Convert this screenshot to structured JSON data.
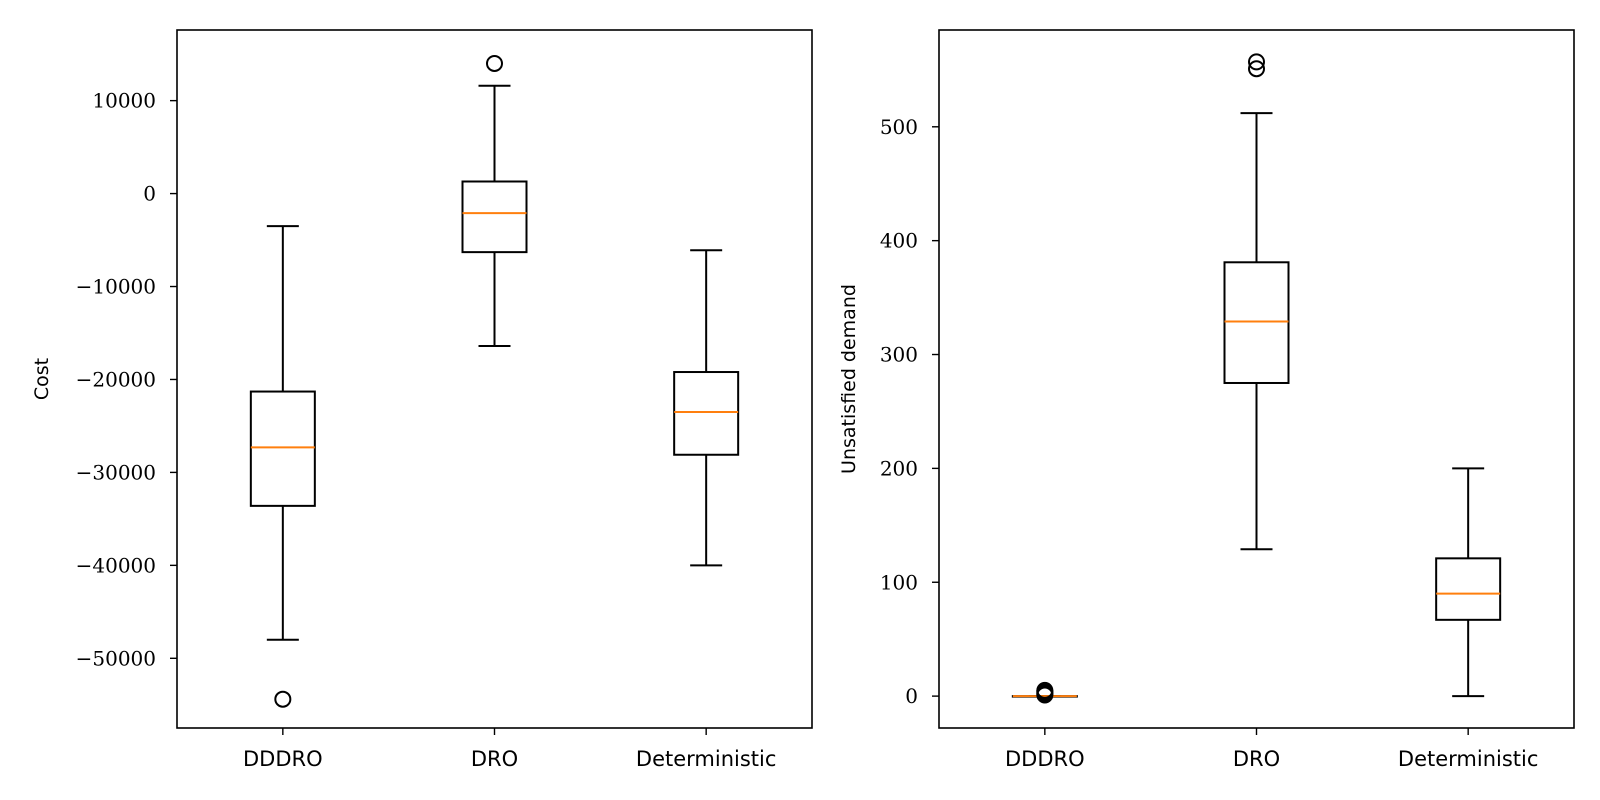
{
  "chart_data": [
    {
      "type": "box",
      "ylabel": "Cost",
      "categories": [
        "DDDRO",
        "DRO",
        "Deterministic"
      ],
      "ylim": [
        -57500,
        17600
      ],
      "yticks": [
        10000,
        0,
        -10000,
        -20000,
        -30000,
        -40000,
        -50000
      ],
      "ytick_labels": [
        "10000",
        "0",
        "−10000",
        "−20000",
        "−30000",
        "−40000",
        "−50000"
      ],
      "boxes": [
        {
          "name": "DDDRO",
          "whisker_low": -48000,
          "q1": -33600,
          "median": -27300,
          "q3": -21300,
          "whisker_high": -3500,
          "outliers": [
            -54400
          ]
        },
        {
          "name": "DRO",
          "whisker_low": -16400,
          "q1": -6300,
          "median": -2100,
          "q3": 1300,
          "whisker_high": 11600,
          "outliers": [
            14000
          ]
        },
        {
          "name": "Deterministic",
          "whisker_low": -40000,
          "q1": -28100,
          "median": -23500,
          "q3": -19200,
          "whisker_high": -6100,
          "outliers": []
        }
      ],
      "colors": {
        "box": "#000000",
        "median": "#ff7f0e"
      }
    },
    {
      "type": "box",
      "ylabel": "Unsatisfied demand",
      "categories": [
        "DDDRO",
        "DRO",
        "Deterministic"
      ],
      "ylim": [
        -28,
        585
      ],
      "yticks": [
        500,
        400,
        300,
        200,
        100,
        0
      ],
      "ytick_labels": [
        "500",
        "400",
        "300",
        "200",
        "100",
        "0"
      ],
      "boxes": [
        {
          "name": "DDDRO",
          "whisker_low": 0,
          "q1": 0,
          "median": 0,
          "q3": 0,
          "whisker_high": 0,
          "outliers": [
            1,
            2,
            3,
            4,
            5
          ]
        },
        {
          "name": "DRO",
          "whisker_low": 129,
          "q1": 275,
          "median": 329,
          "q3": 381,
          "whisker_high": 512,
          "outliers": [
            551,
            557
          ]
        },
        {
          "name": "Deterministic",
          "whisker_low": 0,
          "q1": 67,
          "median": 90,
          "q3": 121,
          "whisker_high": 200,
          "outliers": []
        }
      ],
      "colors": {
        "box": "#000000",
        "median": "#ff7f0e"
      }
    }
  ]
}
